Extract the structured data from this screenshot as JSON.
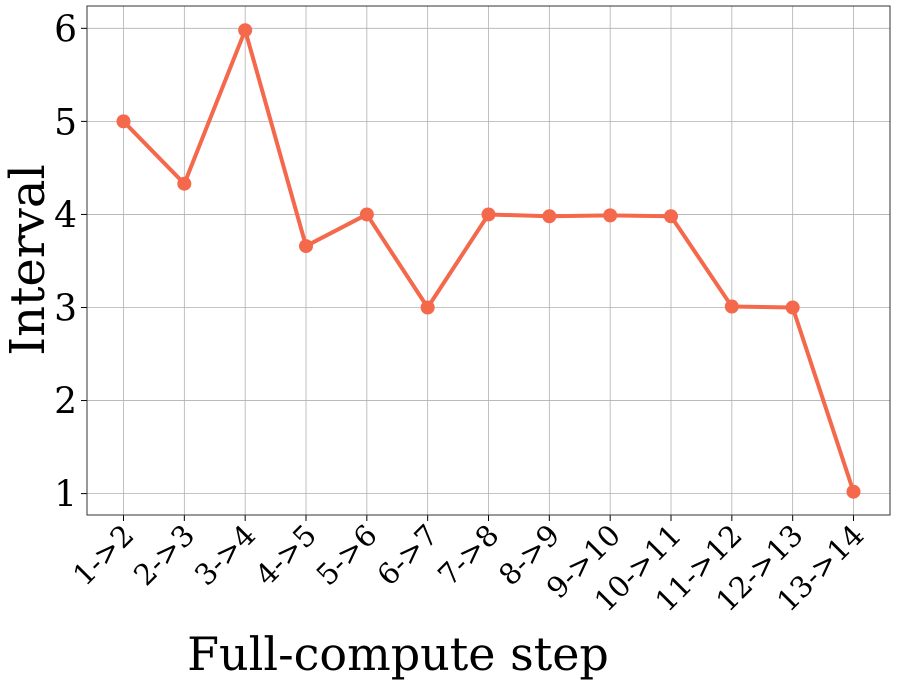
{
  "chart_data": {
    "type": "line",
    "x_label": "Full-compute step",
    "y_label": "Interval",
    "categories": [
      "1->2",
      "2->3",
      "3->4",
      "4->5",
      "5->6",
      "6->7",
      "7->8",
      "8->9",
      "9->10",
      "10->11",
      "11->12",
      "12->13",
      "13->14"
    ],
    "values": [
      5.0,
      4.33,
      5.98,
      3.66,
      4.0,
      3.0,
      4.0,
      3.98,
      3.99,
      3.98,
      3.01,
      3.0,
      1.02
    ],
    "color": "#f4684c",
    "ylim": [
      0.77,
      6.24
    ],
    "yticks": [
      1,
      2,
      3,
      4,
      5,
      6
    ],
    "grid": true
  }
}
